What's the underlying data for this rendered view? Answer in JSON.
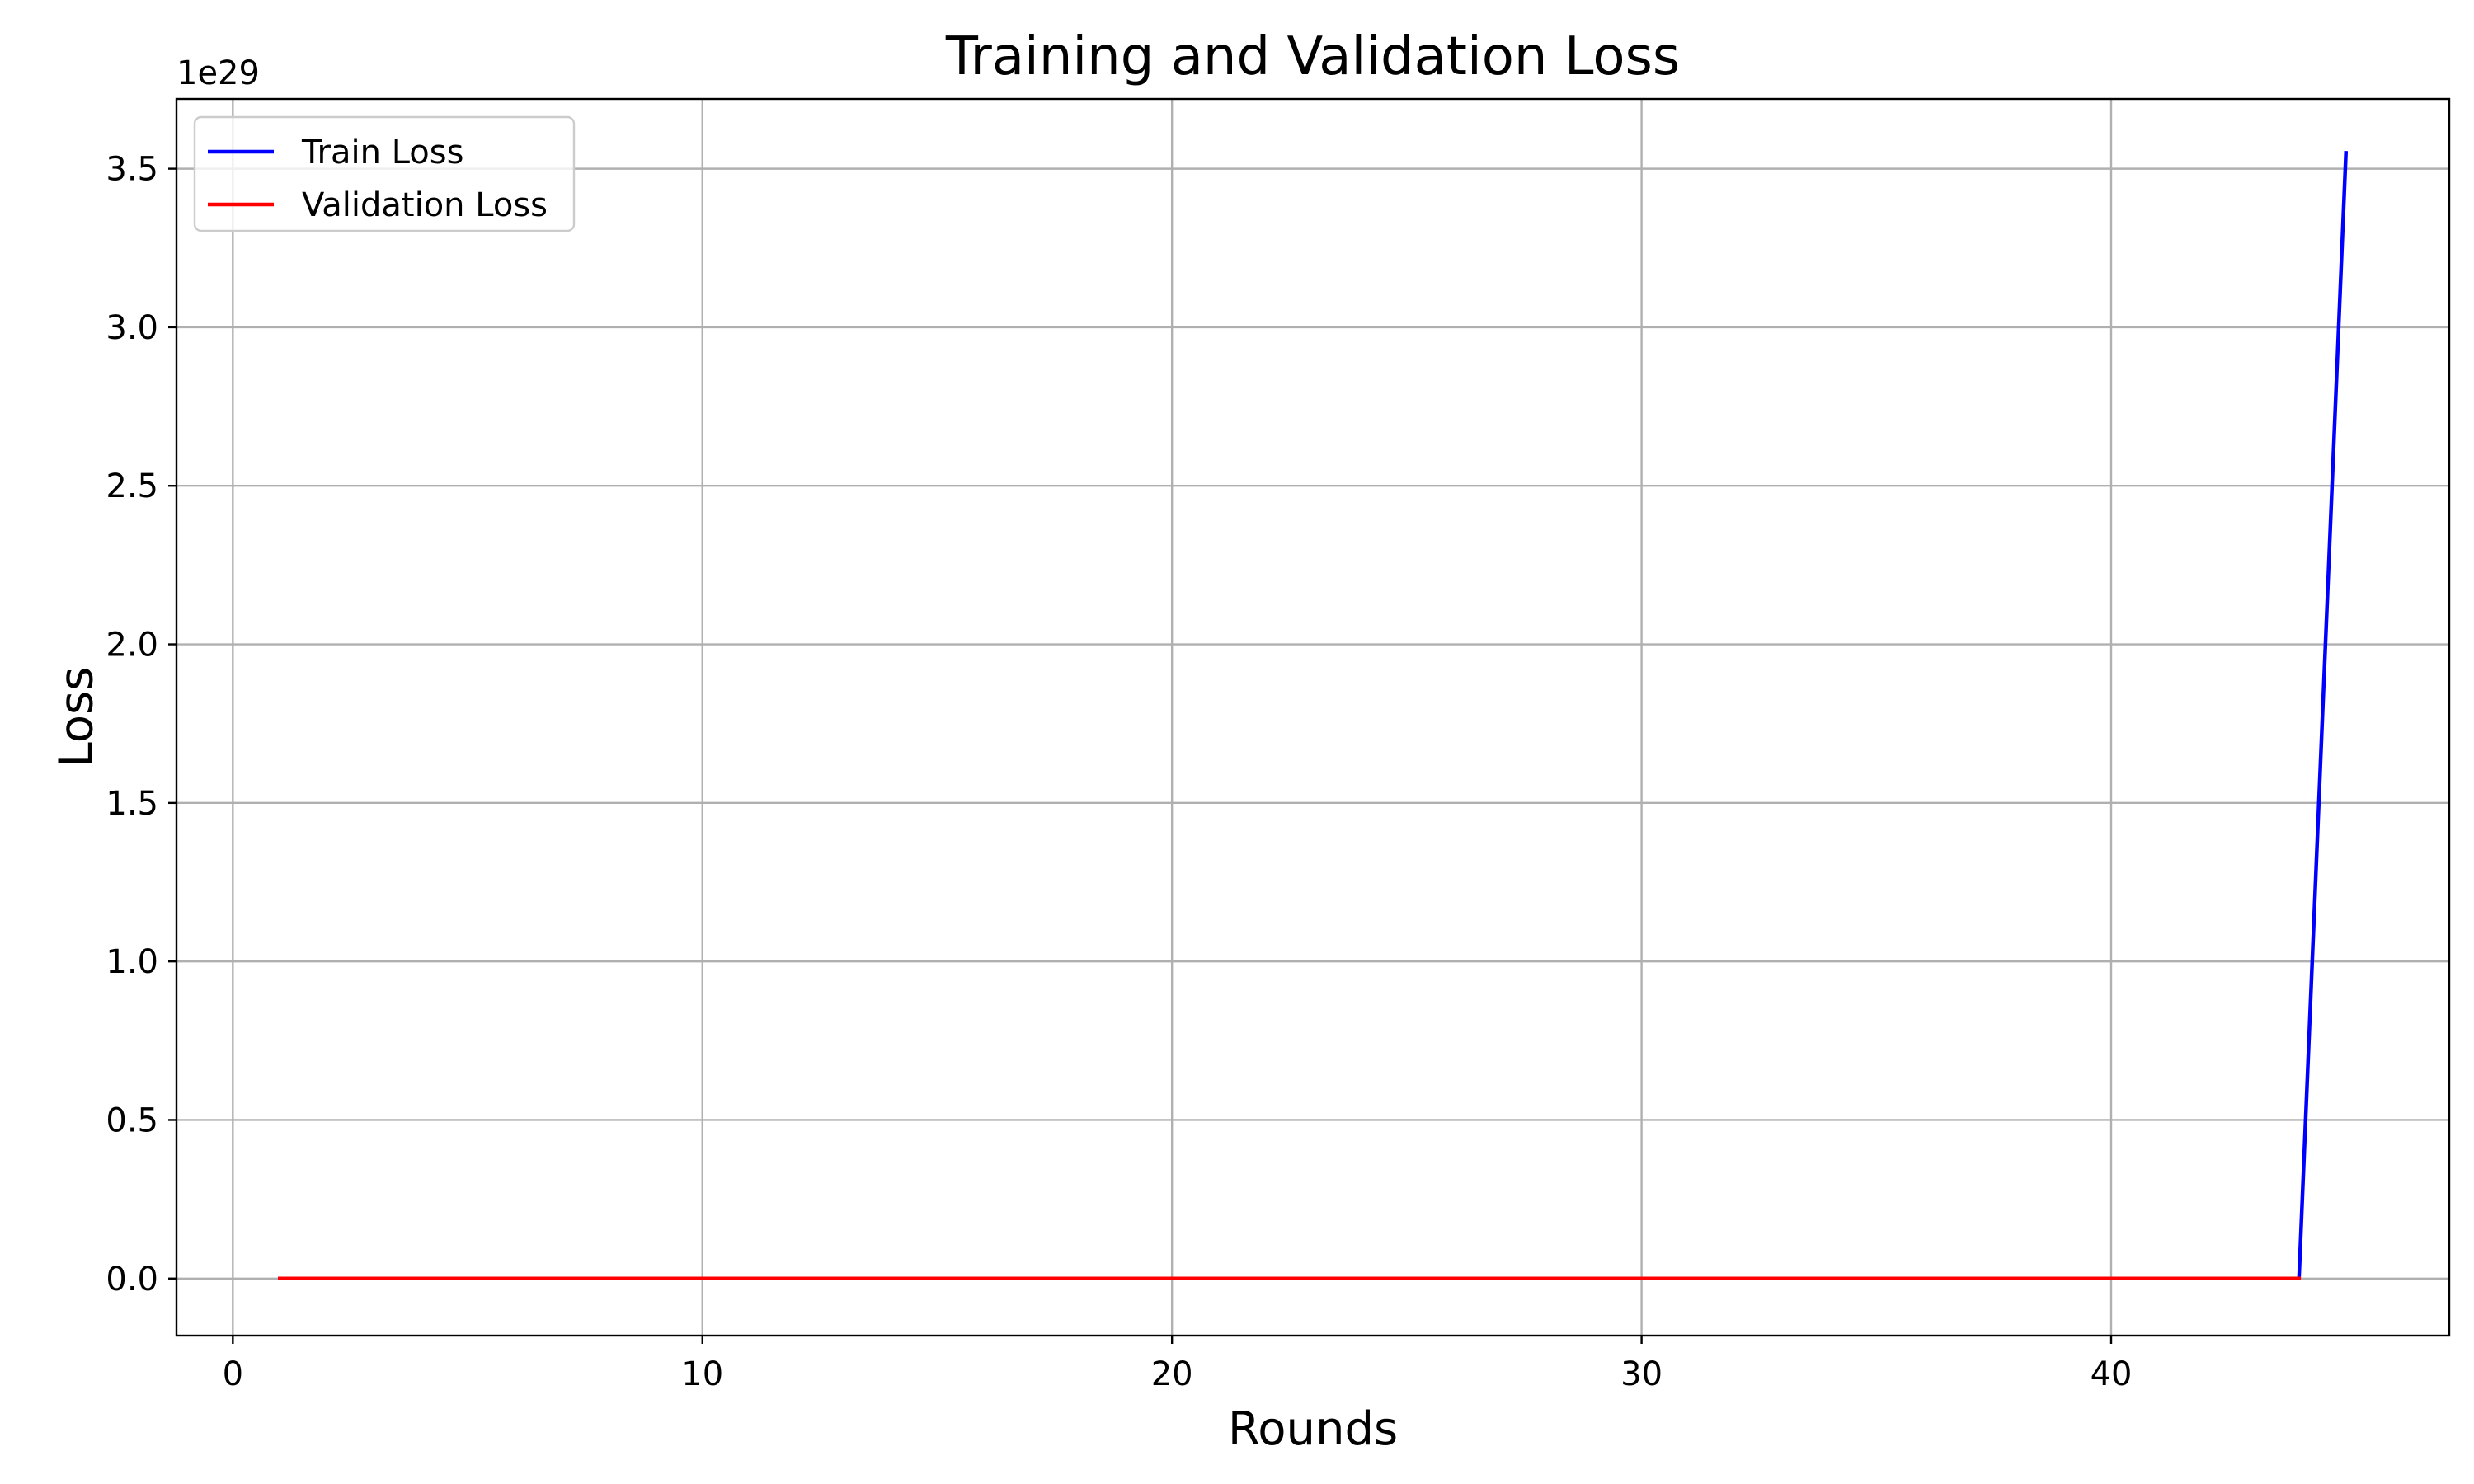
{
  "chart_data": {
    "type": "line",
    "title": "Training and Validation Loss",
    "xlabel": "Rounds",
    "ylabel": "Loss",
    "y_offset_label": "1e29",
    "y_scale_factor": 1e+29,
    "xlim": [
      -1.2,
      47.2
    ],
    "ylim": [
      -0.18,
      3.72
    ],
    "xticks": [
      0,
      10,
      20,
      30,
      40
    ],
    "xtick_labels": [
      "0",
      "10",
      "20",
      "30",
      "40"
    ],
    "yticks": [
      0.0,
      0.5,
      1.0,
      1.5,
      2.0,
      2.5,
      3.0,
      3.5
    ],
    "ytick_labels": [
      "0.0",
      "0.5",
      "1.0",
      "1.5",
      "2.0",
      "2.5",
      "3.0",
      "3.5"
    ],
    "grid": true,
    "legend_position": "top-left",
    "x": [
      1,
      2,
      3,
      4,
      5,
      6,
      7,
      8,
      9,
      10,
      11,
      12,
      13,
      14,
      15,
      16,
      17,
      18,
      19,
      20,
      21,
      22,
      23,
      24,
      25,
      26,
      27,
      28,
      29,
      30,
      31,
      32,
      33,
      34,
      35,
      36,
      37,
      38,
      39,
      40,
      41,
      42,
      43,
      44,
      45
    ],
    "series": [
      {
        "name": "Train Loss",
        "color": "#0000ff",
        "values": [
          0,
          0,
          0,
          0,
          0,
          0,
          0,
          0,
          0,
          0,
          0,
          0,
          0,
          0,
          0,
          0,
          0,
          0,
          0,
          0,
          0,
          0,
          0,
          0,
          0,
          0,
          0,
          0,
          0,
          0,
          0,
          0,
          0,
          0,
          0,
          0,
          0,
          0,
          0,
          0,
          0,
          0,
          0,
          0,
          3.55
        ]
      },
      {
        "name": "Validation Loss",
        "color": "#ff0000",
        "values": [
          0,
          0,
          0,
          0,
          0,
          0,
          0,
          0,
          0,
          0,
          0,
          0,
          0,
          0,
          0,
          0,
          0,
          0,
          0,
          0,
          0,
          0,
          0,
          0,
          0,
          0,
          0,
          0,
          0,
          0,
          0,
          0,
          0,
          0,
          0,
          0,
          0,
          0,
          0,
          0,
          0,
          0,
          0,
          0,
          null
        ]
      }
    ]
  }
}
